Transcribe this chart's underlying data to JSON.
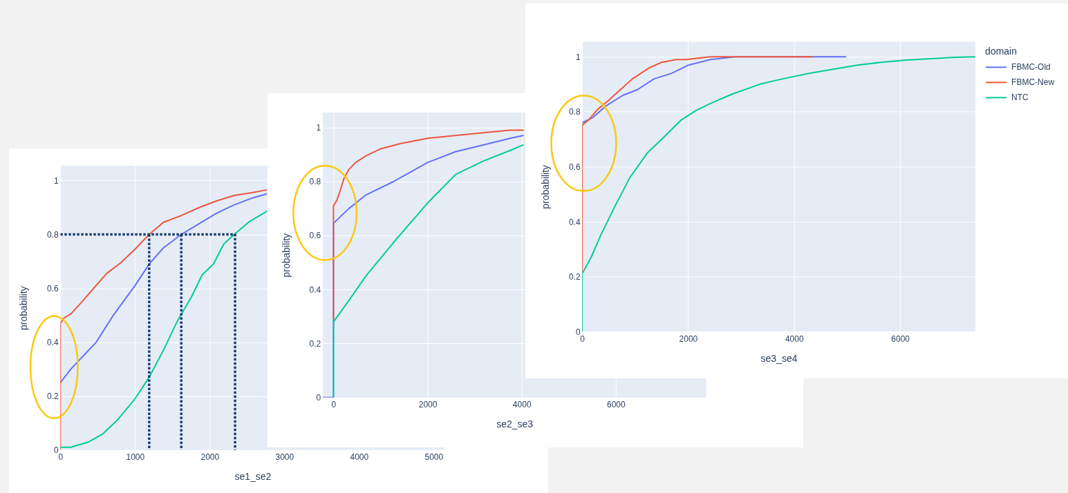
{
  "chart_data": [
    {
      "type": "line",
      "xlabel": "se1_se2",
      "ylabel": "probability",
      "xlim": [
        0,
        5150
      ],
      "xticks": [
        0,
        1000,
        2000,
        3000,
        4000,
        5000
      ],
      "ylim": [
        0,
        1.055
      ],
      "yticks": [
        0,
        0.2,
        0.4,
        0.6,
        0.8,
        1
      ],
      "grid": true,
      "series": [
        {
          "color": "#636efa",
          "x": [
            0,
            140,
            480,
            710,
            1000,
            1190,
            1380,
            1620,
            1860,
            2100,
            2330,
            2570,
            2760
          ],
          "values": [
            0.25,
            0.3,
            0.4,
            0.5,
            0.61,
            0.69,
            0.75,
            0.8,
            0.84,
            0.88,
            0.91,
            0.935,
            0.95
          ]
        },
        {
          "color": "#ef553b",
          "x": [
            0,
            0,
            50,
            140,
            290,
            430,
            620,
            810,
            1000,
            1190,
            1380,
            1620,
            1860,
            2100,
            2330,
            2570,
            2760
          ],
          "values": [
            0,
            0.47,
            0.49,
            0.505,
            0.55,
            0.595,
            0.655,
            0.695,
            0.745,
            0.8,
            0.845,
            0.87,
            0.9,
            0.925,
            0.945,
            0.955,
            0.965
          ]
        },
        {
          "color": "#00cc96",
          "x": [
            0,
            140,
            380,
            570,
            760,
            1000,
            1190,
            1380,
            1570,
            1760,
            1900,
            2050,
            2190,
            2330,
            2520,
            2760
          ],
          "values": [
            0.01,
            0.01,
            0.03,
            0.06,
            0.11,
            0.19,
            0.27,
            0.37,
            0.48,
            0.57,
            0.65,
            0.69,
            0.765,
            0.8,
            0.845,
            0.885
          ]
        },
        {
          "color": "#1b3f6b",
          "line_style": "dotted",
          "x": [
            0,
            2340,
            2340
          ],
          "values": [
            0.8,
            0.8,
            0
          ]
        },
        {
          "color": "#1b3f6b",
          "line_style": "dotted",
          "x": [
            1190,
            1190
          ],
          "values": [
            0.8,
            0
          ]
        },
        {
          "color": "#1b3f6b",
          "line_style": "dotted",
          "x": [
            1620,
            1620
          ],
          "values": [
            0.8,
            0
          ]
        }
      ]
    },
    {
      "type": "line",
      "xlabel": "se2_se3",
      "ylabel": "probability",
      "xlim": [
        -230,
        7920
      ],
      "xticks": [
        0,
        2000,
        4000,
        6000
      ],
      "ylim": [
        0,
        1.055
      ],
      "yticks": [
        0,
        0.2,
        0.4,
        0.6,
        0.8,
        1
      ],
      "grid": true,
      "series": [
        {
          "color": "#636efa",
          "x": [
            -230,
            0,
            0,
            330,
            690,
            1280,
            2000,
            2590,
            3180,
            3760,
            4030
          ],
          "values": [
            0,
            0,
            0.645,
            0.7,
            0.75,
            0.8,
            0.87,
            0.91,
            0.935,
            0.96,
            0.97
          ]
        },
        {
          "color": "#ef553b",
          "x": [
            0,
            0,
            70,
            150,
            220,
            330,
            470,
            690,
            990,
            1420,
            2000,
            2590,
            3180,
            3760,
            4030
          ],
          "values": [
            0.29,
            0.71,
            0.73,
            0.77,
            0.81,
            0.845,
            0.87,
            0.895,
            0.92,
            0.94,
            0.96,
            0.97,
            0.98,
            0.99,
            0.99
          ]
        },
        {
          "color": "#00cc96",
          "x": [
            0,
            0,
            330,
            690,
            1280,
            2000,
            2590,
            3180,
            3760,
            4030
          ],
          "values": [
            0,
            0.28,
            0.36,
            0.45,
            0.575,
            0.72,
            0.825,
            0.875,
            0.915,
            0.935
          ]
        }
      ]
    },
    {
      "type": "line",
      "xlabel": "se3_se4",
      "ylabel": "probability",
      "xlim": [
        0,
        7420
      ],
      "xticks": [
        0,
        2000,
        4000,
        6000
      ],
      "ylim": [
        0,
        1.055
      ],
      "yticks": [
        0,
        0.2,
        0.4,
        0.6,
        0.8,
        1
      ],
      "grid": true,
      "legend": "right",
      "legend_title": "domain",
      "series": [
        {
          "name": "FBMC-Old",
          "color": "#636efa",
          "x": [
            0,
            210,
            440,
            770,
            1040,
            1360,
            1690,
            2010,
            2420,
            2890,
            3530,
            4970
          ],
          "values": [
            0.76,
            0.78,
            0.82,
            0.86,
            0.88,
            0.92,
            0.94,
            0.97,
            0.99,
            1,
            1,
            1
          ]
        },
        {
          "name": "FBMC-New",
          "color": "#ef553b",
          "x": [
            0,
            0,
            120,
            300,
            490,
            720,
            950,
            1270,
            1500,
            1780,
            1960,
            2420,
            3070,
            4340
          ],
          "values": [
            0.21,
            0.75,
            0.77,
            0.81,
            0.84,
            0.88,
            0.92,
            0.96,
            0.98,
            0.99,
            0.99,
            1,
            1,
            1
          ]
        },
        {
          "name": "NTC",
          "color": "#00cc96",
          "x": [
            0,
            0,
            170,
            350,
            630,
            900,
            1230,
            1500,
            1870,
            2150,
            2420,
            2840,
            3350,
            3670,
            4040,
            4280,
            4740,
            5200,
            5650,
            6110,
            6570,
            7030,
            7420
          ],
          "values": [
            0,
            0.21,
            0.27,
            0.35,
            0.46,
            0.56,
            0.65,
            0.7,
            0.77,
            0.805,
            0.83,
            0.865,
            0.9,
            0.915,
            0.93,
            0.94,
            0.955,
            0.97,
            0.98,
            0.988,
            0.993,
            0.998,
            1
          ]
        }
      ]
    }
  ]
}
